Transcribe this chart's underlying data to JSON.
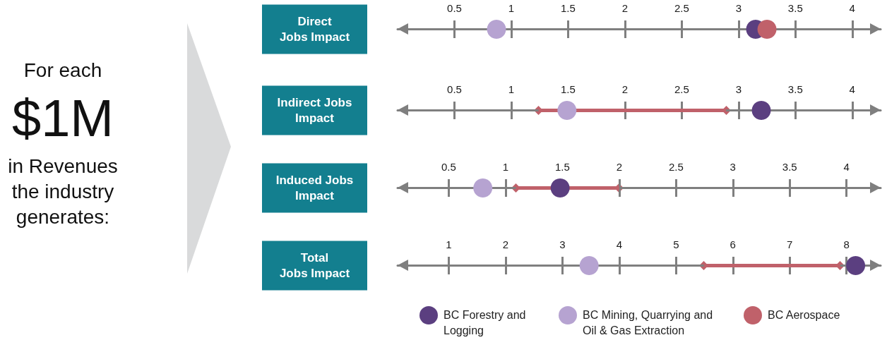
{
  "chart_data": [
    {
      "type": "scatter",
      "orientation": "horizontal",
      "marker": "circle",
      "categories": [
        "Direct\nJobs Impact"
      ],
      "xlim": [
        0,
        4.25
      ],
      "xticks": [
        0.5,
        1,
        1.5,
        2,
        2.5,
        3,
        3.5,
        4
      ],
      "annotations": [
        "For each",
        "$1M",
        "in Revenues the industry generates:"
      ],
      "series": [
        {
          "color": "#5b3f80",
          "values": [
            3.15
          ]
        },
        {
          "color": "#b6a3d1",
          "values": [
            0.87
          ]
        },
        {
          "color": "#c0616a",
          "values": [
            3.25
          ]
        }
      ]
    },
    {
      "type": "scatter",
      "orientation": "horizontal",
      "marker": "circle",
      "categories": [
        "Indirect Jobs\nImpact"
      ],
      "xlim": [
        0,
        4.25
      ],
      "xticks": [
        0.5,
        1,
        1.5,
        2,
        2.5,
        3,
        3.5,
        4
      ],
      "series": [
        {
          "color": "#5b3f80",
          "values": [
            3.2
          ]
        },
        {
          "color": "#b6a3d1",
          "values": [
            1.49
          ]
        },
        {
          "type": "bar",
          "marker": "diamond",
          "color": "#c0616a",
          "base": [
            1.24
          ],
          "values": [
            1.65
          ]
        }
      ]
    },
    {
      "type": "scatter",
      "orientation": "horizontal",
      "marker": "circle",
      "categories": [
        "Induced Jobs\nImpact"
      ],
      "xlim": [
        0.05,
        4.3
      ],
      "xticks": [
        0.5,
        1,
        1.5,
        2,
        2.5,
        3,
        3.5,
        4
      ],
      "series": [
        {
          "color": "#5b3f80",
          "values": [
            1.48
          ]
        },
        {
          "color": "#b6a3d1",
          "values": [
            0.8
          ]
        },
        {
          "type": "bar",
          "marker": "diamond",
          "color": "#c0616a",
          "base": [
            1.09
          ],
          "values": [
            0.91
          ]
        }
      ]
    },
    {
      "type": "scatter",
      "orientation": "horizontal",
      "marker": "circle",
      "categories": [
        "Total\nJobs Impact"
      ],
      "xlim": [
        0.1,
        8.6
      ],
      "xticks": [
        1,
        2,
        3,
        4,
        5,
        6,
        7,
        8
      ],
      "legend": "bottom",
      "series": [
        {
          "name": "BC Forestry and Logging",
          "color": "#5b3f80",
          "values": [
            8.16
          ]
        },
        {
          "name": "BC Mining, Quarrying and Oil & Gas Extraction",
          "color": "#b6a3d1",
          "values": [
            3.47
          ]
        },
        {
          "name": "BC Aerospace",
          "type": "bar",
          "marker": "diamond",
          "color": "#c0616a",
          "base": [
            5.49
          ],
          "values": [
            2.4
          ]
        }
      ]
    }
  ]
}
